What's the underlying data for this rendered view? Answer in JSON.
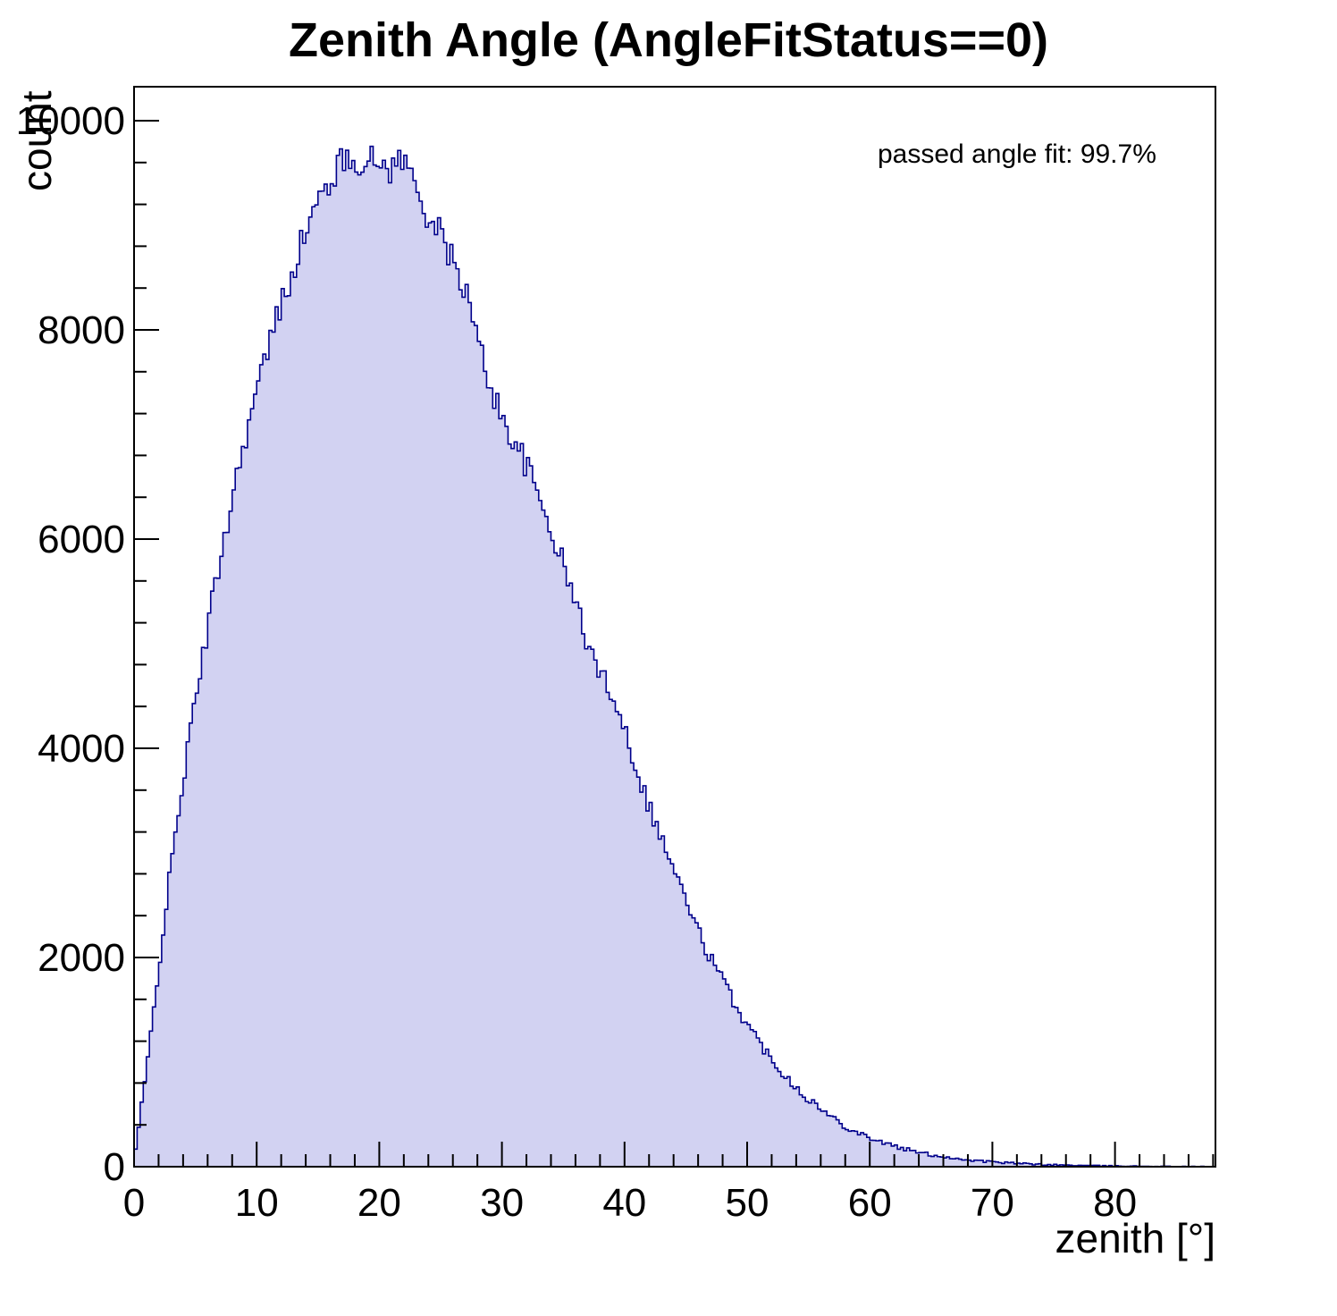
{
  "title": "Zenith Angle (AngleFitStatus==0)",
  "annotation": "passed angle fit: 99.7%",
  "chart_data": {
    "type": "bar",
    "histogram": true,
    "title": "Zenith Angle (AngleFitStatus==0)",
    "xlabel": "zenith [°]",
    "ylabel": "count",
    "xlim": [
      0,
      88.2
    ],
    "ylim": [
      0,
      10325
    ],
    "x_ticks": [
      0,
      10,
      20,
      30,
      40,
      50,
      60,
      70,
      80
    ],
    "y_ticks": [
      0,
      2000,
      4000,
      6000,
      8000,
      10000
    ],
    "x_minor_step": 2,
    "y_minor_step": 400,
    "grid": false,
    "legend_position": "none",
    "line_color": "#00008b",
    "fill_color": "#d2d2f2",
    "annotation": "passed angle fit: 99.7%",
    "bin_width_deg": 1,
    "x": [
      0,
      1,
      2,
      3,
      4,
      5,
      6,
      7,
      8,
      9,
      10,
      11,
      12,
      13,
      14,
      15,
      16,
      17,
      18,
      19,
      20,
      21,
      22,
      23,
      24,
      25,
      26,
      27,
      28,
      29,
      30,
      31,
      32,
      33,
      34,
      35,
      36,
      37,
      38,
      39,
      40,
      41,
      42,
      43,
      44,
      45,
      46,
      47,
      48,
      49,
      50,
      51,
      52,
      53,
      54,
      55,
      56,
      57,
      58,
      59,
      60,
      61,
      62,
      63,
      64,
      65,
      66,
      67,
      68,
      69,
      70,
      71,
      72,
      73,
      74,
      75,
      76,
      77,
      78,
      79,
      80,
      81,
      82,
      83,
      84,
      85,
      86,
      87,
      88
    ],
    "values": [
      60,
      900,
      1900,
      2850,
      3700,
      4450,
      5150,
      5800,
      6400,
      6950,
      7400,
      7850,
      8250,
      8600,
      8950,
      9200,
      9450,
      9600,
      9650,
      9600,
      9600,
      9550,
      9650,
      9350,
      9100,
      8900,
      8650,
      8400,
      7900,
      7500,
      7150,
      6950,
      6700,
      6400,
      6100,
      5750,
      5400,
      5000,
      4700,
      4550,
      4200,
      3800,
      3450,
      3150,
      2850,
      2550,
      2250,
      2000,
      1780,
      1560,
      1360,
      1190,
      1030,
      890,
      760,
      650,
      550,
      465,
      390,
      330,
      280,
      235,
      195,
      165,
      135,
      115,
      95,
      80,
      65,
      55,
      45,
      38,
      31,
      26,
      21,
      18,
      15,
      12,
      10,
      8,
      7,
      6,
      5,
      4,
      3,
      3,
      2,
      2,
      1
    ]
  }
}
